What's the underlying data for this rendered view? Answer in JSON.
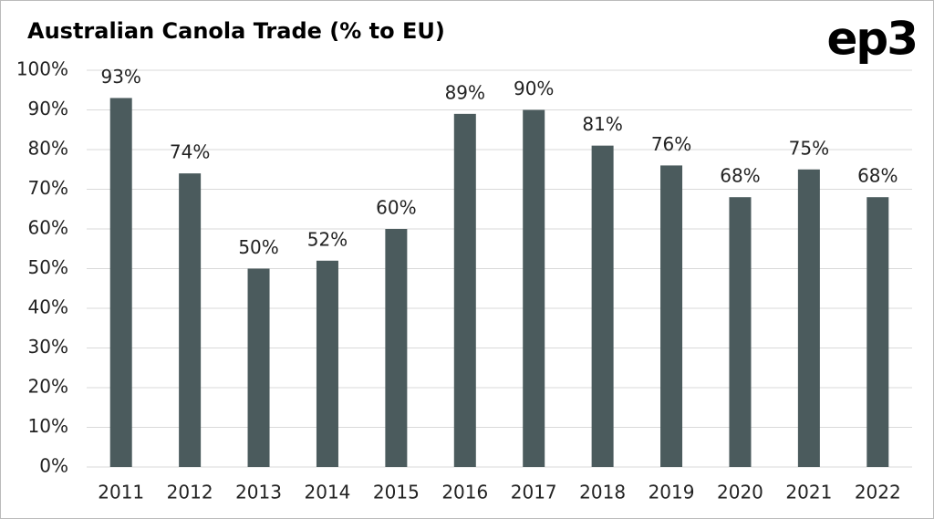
{
  "chart_data": {
    "type": "bar",
    "title": "Australian Canola Trade (% to EU)",
    "logo": "ep3",
    "categories": [
      "2011",
      "2012",
      "2013",
      "2014",
      "2015",
      "2016",
      "2017",
      "2018",
      "2019",
      "2020",
      "2021",
      "2022"
    ],
    "values": [
      93,
      74,
      50,
      52,
      60,
      89,
      90,
      81,
      76,
      68,
      75,
      68
    ],
    "value_labels": [
      "93%",
      "74%",
      "50%",
      "52%",
      "60%",
      "89%",
      "90%",
      "81%",
      "76%",
      "68%",
      "75%",
      "68%"
    ],
    "color": "#4b5b5d",
    "ylim": [
      0,
      100
    ],
    "yticks": [
      {
        "value": 0,
        "label": "0%"
      },
      {
        "value": 10,
        "label": "10%"
      },
      {
        "value": 20,
        "label": "20%"
      },
      {
        "value": 30,
        "label": "30%"
      },
      {
        "value": 40,
        "label": "40%"
      },
      {
        "value": 50,
        "label": "50%"
      },
      {
        "value": 60,
        "label": "60%"
      },
      {
        "value": 70,
        "label": "70%"
      },
      {
        "value": 80,
        "label": "80%"
      },
      {
        "value": 90,
        "label": "90%"
      },
      {
        "value": 100,
        "label": "100%"
      }
    ],
    "grid": true
  }
}
